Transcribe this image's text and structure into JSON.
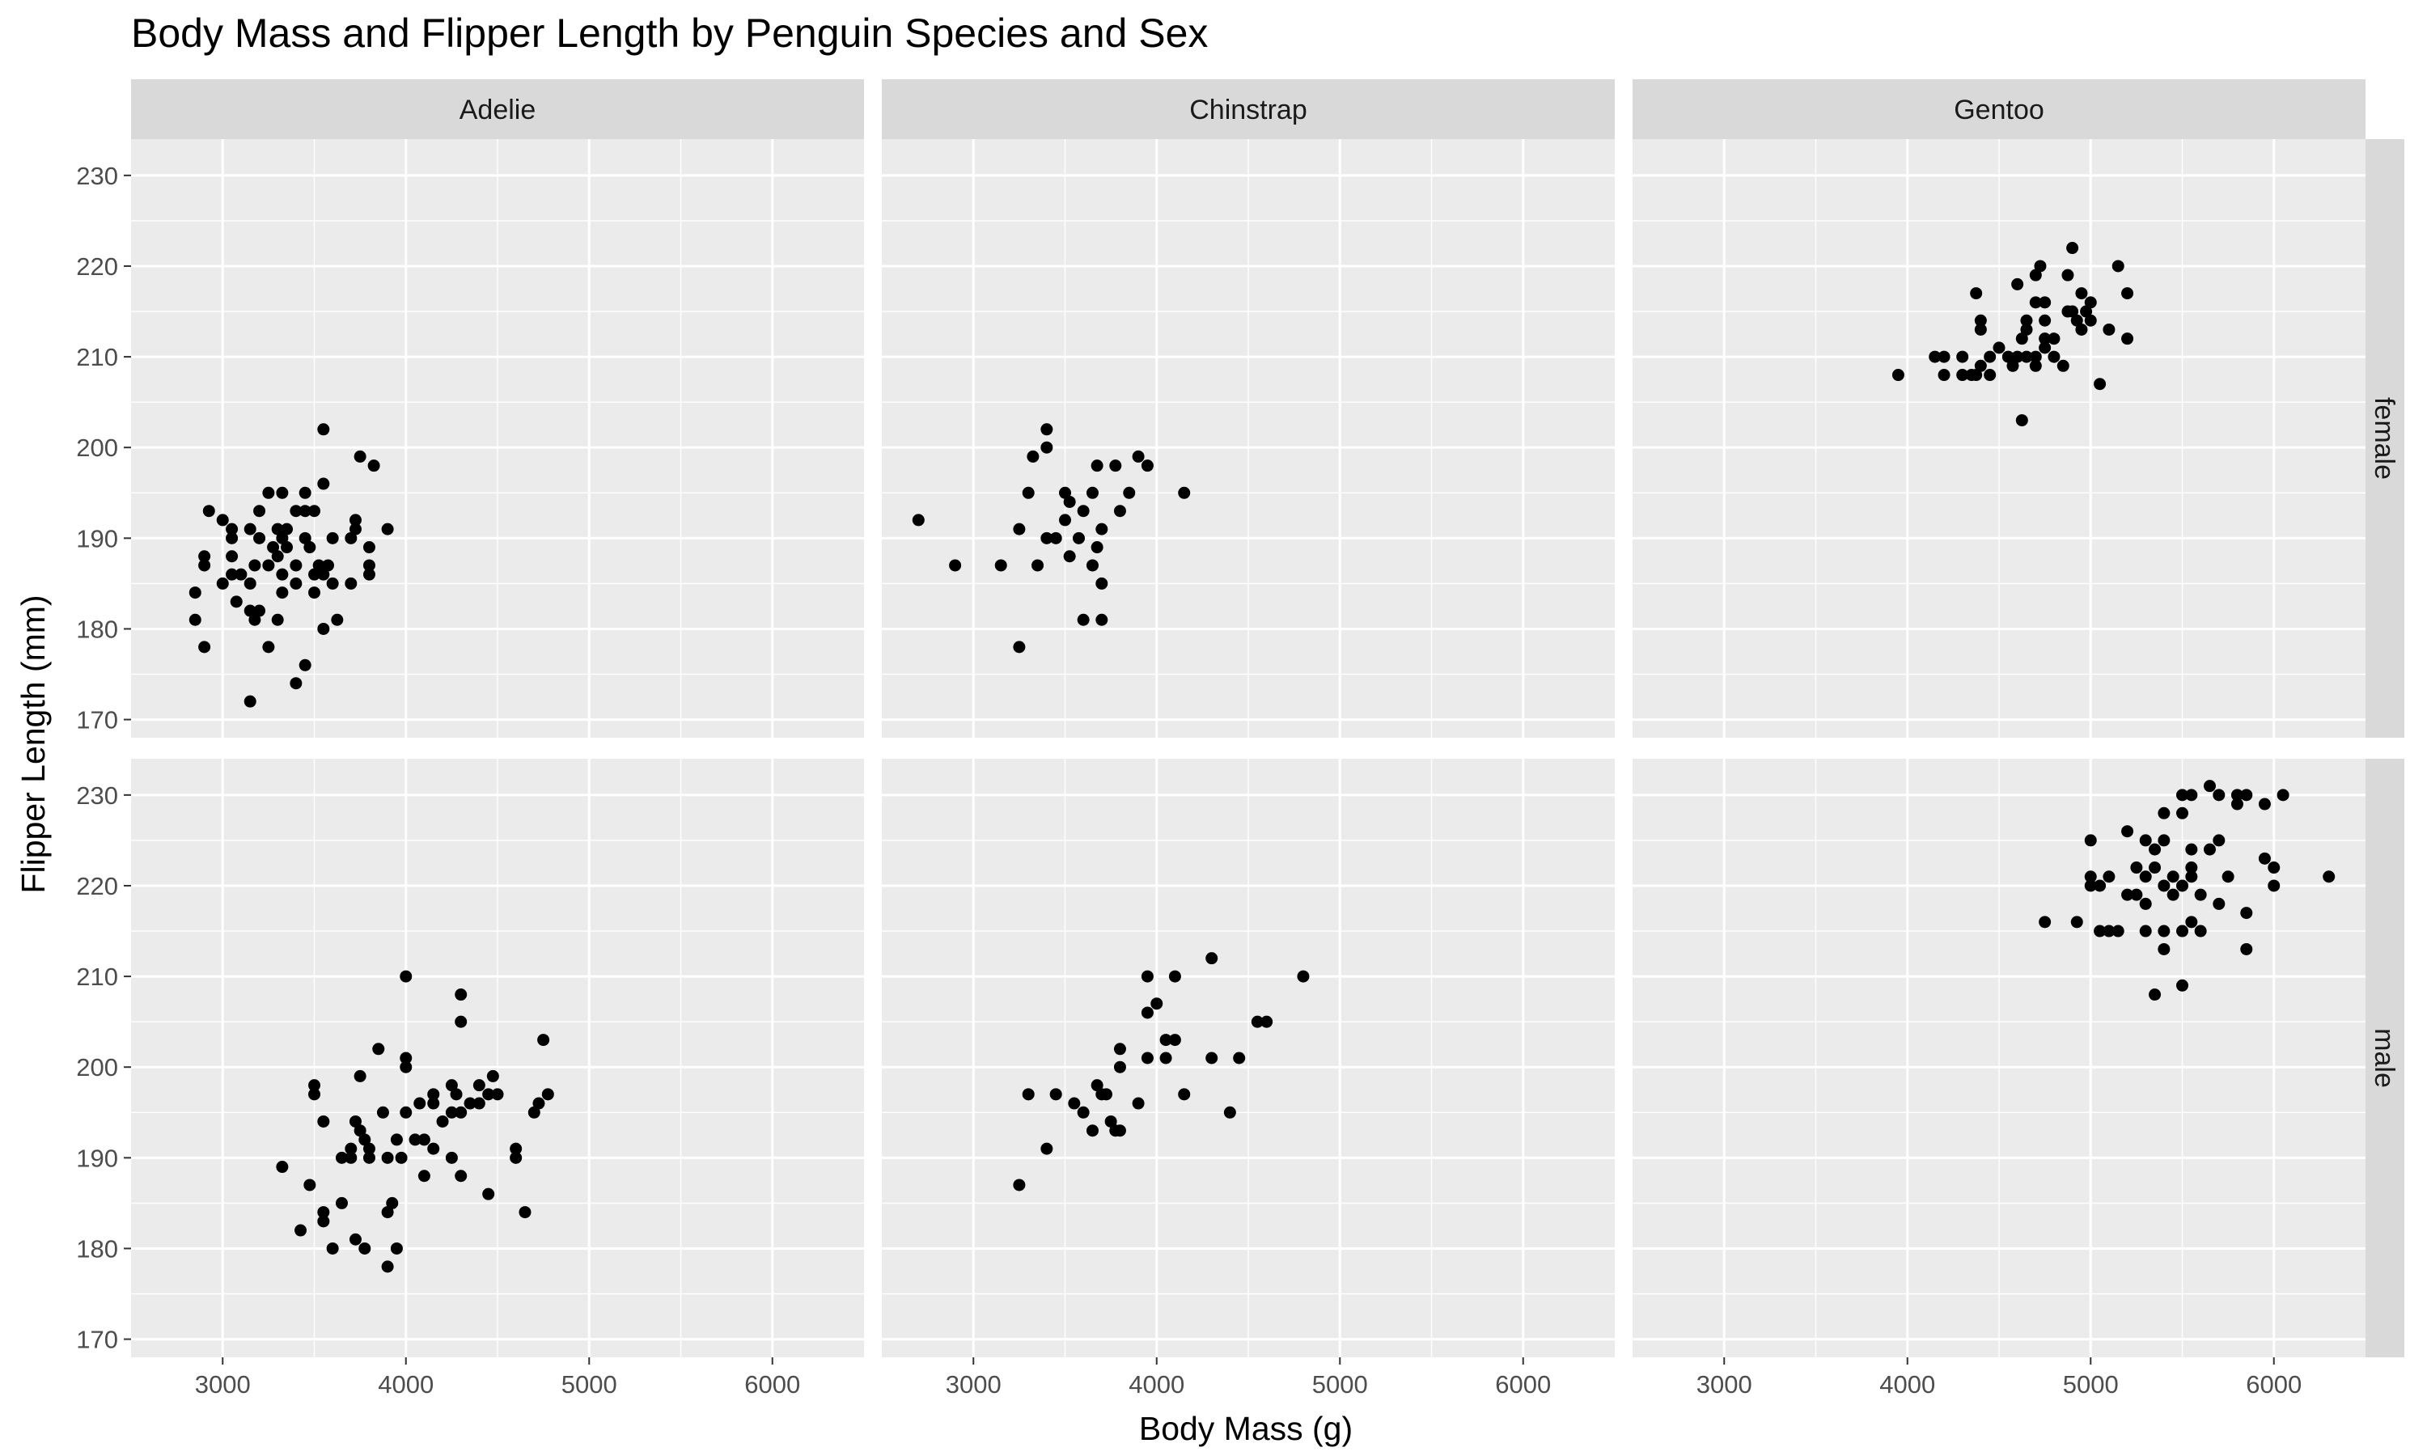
{
  "chart_data": {
    "type": "scatter",
    "title": "Body Mass and Flipper Length by Penguin Species and Sex",
    "xlabel": "Body Mass (g)",
    "ylabel": "Flipper Length (mm)",
    "xlim": [
      2500,
      6500
    ],
    "ylim": [
      168,
      234
    ],
    "x_ticks": [
      3000,
      4000,
      5000,
      6000
    ],
    "y_ticks": [
      170,
      180,
      190,
      200,
      210,
      220,
      230
    ],
    "x_tick_labels": [
      "3000",
      "4000",
      "5000",
      "6000"
    ],
    "y_tick_labels": [
      "170",
      "180",
      "190",
      "200",
      "210",
      "220",
      "230"
    ],
    "grid": true,
    "facet_columns": [
      "Adelie",
      "Chinstrap",
      "Gentoo"
    ],
    "facet_rows": [
      "female",
      "male"
    ],
    "colors": {
      "point": "#000000",
      "panel": "#ebebeb",
      "grid": "#ffffff",
      "strip": "#d9d9d9",
      "text": "#1a1a1a",
      "tick": "#4d4d4d"
    },
    "panels": [
      {
        "species": "Adelie",
        "sex": "female",
        "points": [
          [
            2850,
            184
          ],
          [
            2850,
            181
          ],
          [
            2900,
            178
          ],
          [
            2900,
            188
          ],
          [
            2900,
            187
          ],
          [
            2925,
            193
          ],
          [
            3000,
            192
          ],
          [
            3000,
            185
          ],
          [
            3050,
            191
          ],
          [
            3050,
            190
          ],
          [
            3050,
            186
          ],
          [
            3050,
            188
          ],
          [
            3075,
            183
          ],
          [
            3100,
            186
          ],
          [
            3150,
            185
          ],
          [
            3150,
            191
          ],
          [
            3150,
            182
          ],
          [
            3150,
            172
          ],
          [
            3175,
            187
          ],
          [
            3175,
            181
          ],
          [
            3200,
            190
          ],
          [
            3200,
            182
          ],
          [
            3200,
            193
          ],
          [
            3250,
            195
          ],
          [
            3250,
            178
          ],
          [
            3250,
            187
          ],
          [
            3275,
            189
          ],
          [
            3300,
            191
          ],
          [
            3300,
            181
          ],
          [
            3300,
            188
          ],
          [
            3325,
            186
          ],
          [
            3325,
            190
          ],
          [
            3325,
            184
          ],
          [
            3325,
            195
          ],
          [
            3350,
            189
          ],
          [
            3350,
            191
          ],
          [
            3400,
            187
          ],
          [
            3400,
            185
          ],
          [
            3400,
            193
          ],
          [
            3400,
            174
          ],
          [
            3450,
            193
          ],
          [
            3450,
            195
          ],
          [
            3450,
            190
          ],
          [
            3450,
            176
          ],
          [
            3475,
            189
          ],
          [
            3500,
            193
          ],
          [
            3500,
            184
          ],
          [
            3500,
            186
          ],
          [
            3525,
            187
          ],
          [
            3550,
            186
          ],
          [
            3550,
            196
          ],
          [
            3550,
            202
          ],
          [
            3550,
            180
          ],
          [
            3575,
            187
          ],
          [
            3600,
            190
          ],
          [
            3600,
            185
          ],
          [
            3625,
            181
          ],
          [
            3700,
            185
          ],
          [
            3700,
            190
          ],
          [
            3725,
            191
          ],
          [
            3725,
            192
          ],
          [
            3750,
            199
          ],
          [
            3800,
            187
          ],
          [
            3800,
            186
          ],
          [
            3800,
            189
          ],
          [
            3825,
            198
          ],
          [
            3900,
            191
          ]
        ]
      },
      {
        "species": "Adelie",
        "sex": "male",
        "points": [
          [
            3325,
            189
          ],
          [
            3425,
            182
          ],
          [
            3475,
            187
          ],
          [
            3500,
            198
          ],
          [
            3500,
            197
          ],
          [
            3550,
            184
          ],
          [
            3550,
            183
          ],
          [
            3550,
            194
          ],
          [
            3600,
            180
          ],
          [
            3650,
            185
          ],
          [
            3650,
            190
          ],
          [
            3700,
            190
          ],
          [
            3700,
            191
          ],
          [
            3725,
            181
          ],
          [
            3725,
            194
          ],
          [
            3750,
            193
          ],
          [
            3750,
            199
          ],
          [
            3775,
            192
          ],
          [
            3775,
            180
          ],
          [
            3800,
            190
          ],
          [
            3800,
            191
          ],
          [
            3850,
            202
          ],
          [
            3875,
            195
          ],
          [
            3900,
            184
          ],
          [
            3900,
            178
          ],
          [
            3900,
            190
          ],
          [
            3925,
            185
          ],
          [
            3950,
            180
          ],
          [
            3950,
            192
          ],
          [
            3975,
            190
          ],
          [
            4000,
            195
          ],
          [
            4000,
            201
          ],
          [
            4000,
            200
          ],
          [
            4000,
            210
          ],
          [
            4050,
            192
          ],
          [
            4075,
            196
          ],
          [
            4100,
            188
          ],
          [
            4100,
            192
          ],
          [
            4150,
            191
          ],
          [
            4150,
            197
          ],
          [
            4150,
            196
          ],
          [
            4200,
            194
          ],
          [
            4250,
            198
          ],
          [
            4250,
            190
          ],
          [
            4250,
            195
          ],
          [
            4275,
            197
          ],
          [
            4300,
            208
          ],
          [
            4300,
            205
          ],
          [
            4300,
            188
          ],
          [
            4300,
            195
          ],
          [
            4350,
            196
          ],
          [
            4400,
            198
          ],
          [
            4400,
            196
          ],
          [
            4450,
            197
          ],
          [
            4450,
            186
          ],
          [
            4475,
            199
          ],
          [
            4500,
            197
          ],
          [
            4600,
            191
          ],
          [
            4600,
            190
          ],
          [
            4650,
            184
          ],
          [
            4700,
            195
          ],
          [
            4725,
            196
          ],
          [
            4750,
            203
          ],
          [
            4775,
            197
          ]
        ]
      },
      {
        "species": "Chinstrap",
        "sex": "female",
        "points": [
          [
            2700,
            192
          ],
          [
            2900,
            187
          ],
          [
            3150,
            187
          ],
          [
            3250,
            191
          ],
          [
            3250,
            178
          ],
          [
            3300,
            195
          ],
          [
            3325,
            199
          ],
          [
            3350,
            187
          ],
          [
            3400,
            190
          ],
          [
            3400,
            202
          ],
          [
            3400,
            200
          ],
          [
            3450,
            190
          ],
          [
            3500,
            192
          ],
          [
            3500,
            195
          ],
          [
            3525,
            194
          ],
          [
            3525,
            188
          ],
          [
            3575,
            190
          ],
          [
            3600,
            193
          ],
          [
            3600,
            181
          ],
          [
            3650,
            187
          ],
          [
            3650,
            195
          ],
          [
            3675,
            189
          ],
          [
            3675,
            198
          ],
          [
            3700,
            185
          ],
          [
            3700,
            191
          ],
          [
            3700,
            181
          ],
          [
            3775,
            198
          ],
          [
            3800,
            193
          ],
          [
            3850,
            195
          ],
          [
            3900,
            199
          ],
          [
            3950,
            198
          ],
          [
            4150,
            195
          ]
        ]
      },
      {
        "species": "Chinstrap",
        "sex": "male",
        "points": [
          [
            3250,
            187
          ],
          [
            3300,
            197
          ],
          [
            3400,
            191
          ],
          [
            3450,
            197
          ],
          [
            3550,
            196
          ],
          [
            3600,
            195
          ],
          [
            3650,
            193
          ],
          [
            3675,
            198
          ],
          [
            3700,
            197
          ],
          [
            3725,
            197
          ],
          [
            3750,
            194
          ],
          [
            3775,
            193
          ],
          [
            3800,
            200
          ],
          [
            3800,
            202
          ],
          [
            3800,
            193
          ],
          [
            3900,
            196
          ],
          [
            3950,
            201
          ],
          [
            3950,
            206
          ],
          [
            3950,
            210
          ],
          [
            4000,
            207
          ],
          [
            4050,
            203
          ],
          [
            4050,
            201
          ],
          [
            4100,
            203
          ],
          [
            4100,
            210
          ],
          [
            4150,
            197
          ],
          [
            4300,
            212
          ],
          [
            4300,
            201
          ],
          [
            4400,
            195
          ],
          [
            4450,
            201
          ],
          [
            4550,
            205
          ],
          [
            4600,
            205
          ],
          [
            4800,
            210
          ]
        ]
      },
      {
        "species": "Gentoo",
        "sex": "female",
        "points": [
          [
            3950,
            208
          ],
          [
            4150,
            210
          ],
          [
            4200,
            208
          ],
          [
            4200,
            210
          ],
          [
            4300,
            210
          ],
          [
            4300,
            208
          ],
          [
            4350,
            208
          ],
          [
            4375,
            208
          ],
          [
            4375,
            217
          ],
          [
            4400,
            209
          ],
          [
            4400,
            214
          ],
          [
            4400,
            213
          ],
          [
            4450,
            210
          ],
          [
            4450,
            208
          ],
          [
            4500,
            211
          ],
          [
            4550,
            210
          ],
          [
            4575,
            209
          ],
          [
            4600,
            210
          ],
          [
            4600,
            218
          ],
          [
            4625,
            212
          ],
          [
            4625,
            203
          ],
          [
            4650,
            210
          ],
          [
            4650,
            213
          ],
          [
            4650,
            214
          ],
          [
            4700,
            219
          ],
          [
            4700,
            216
          ],
          [
            4700,
            210
          ],
          [
            4700,
            209
          ],
          [
            4725,
            220
          ],
          [
            4750,
            216
          ],
          [
            4750,
            214
          ],
          [
            4750,
            212
          ],
          [
            4750,
            211
          ],
          [
            4800,
            210
          ],
          [
            4800,
            212
          ],
          [
            4850,
            209
          ],
          [
            4875,
            215
          ],
          [
            4875,
            219
          ],
          [
            4900,
            215
          ],
          [
            4900,
            222
          ],
          [
            4925,
            214
          ],
          [
            4950,
            217
          ],
          [
            4950,
            213
          ],
          [
            4975,
            215
          ],
          [
            5000,
            216
          ],
          [
            5000,
            214
          ],
          [
            5050,
            207
          ],
          [
            5100,
            213
          ],
          [
            5150,
            220
          ],
          [
            5200,
            212
          ],
          [
            5200,
            217
          ]
        ]
      },
      {
        "species": "Gentoo",
        "sex": "male",
        "points": [
          [
            4750,
            216
          ],
          [
            4925,
            216
          ],
          [
            5000,
            225
          ],
          [
            5000,
            220
          ],
          [
            5000,
            221
          ],
          [
            5050,
            215
          ],
          [
            5050,
            220
          ],
          [
            5100,
            215
          ],
          [
            5100,
            221
          ],
          [
            5150,
            215
          ],
          [
            5200,
            219
          ],
          [
            5200,
            226
          ],
          [
            5250,
            219
          ],
          [
            5250,
            222
          ],
          [
            5300,
            225
          ],
          [
            5300,
            221
          ],
          [
            5300,
            215
          ],
          [
            5300,
            218
          ],
          [
            5350,
            208
          ],
          [
            5350,
            222
          ],
          [
            5350,
            224
          ],
          [
            5400,
            213
          ],
          [
            5400,
            215
          ],
          [
            5400,
            220
          ],
          [
            5400,
            225
          ],
          [
            5400,
            228
          ],
          [
            5450,
            221
          ],
          [
            5450,
            219
          ],
          [
            5500,
            209
          ],
          [
            5500,
            215
          ],
          [
            5500,
            220
          ],
          [
            5500,
            228
          ],
          [
            5500,
            230
          ],
          [
            5550,
            216
          ],
          [
            5550,
            221
          ],
          [
            5550,
            222
          ],
          [
            5550,
            224
          ],
          [
            5550,
            230
          ],
          [
            5600,
            215
          ],
          [
            5600,
            219
          ],
          [
            5650,
            224
          ],
          [
            5650,
            231
          ],
          [
            5700,
            218
          ],
          [
            5700,
            225
          ],
          [
            5700,
            230
          ],
          [
            5750,
            221
          ],
          [
            5800,
            229
          ],
          [
            5800,
            230
          ],
          [
            5850,
            213
          ],
          [
            5850,
            217
          ],
          [
            5850,
            230
          ],
          [
            5950,
            223
          ],
          [
            5950,
            229
          ],
          [
            6000,
            220
          ],
          [
            6000,
            222
          ],
          [
            6050,
            230
          ],
          [
            6300,
            221
          ]
        ]
      }
    ]
  }
}
